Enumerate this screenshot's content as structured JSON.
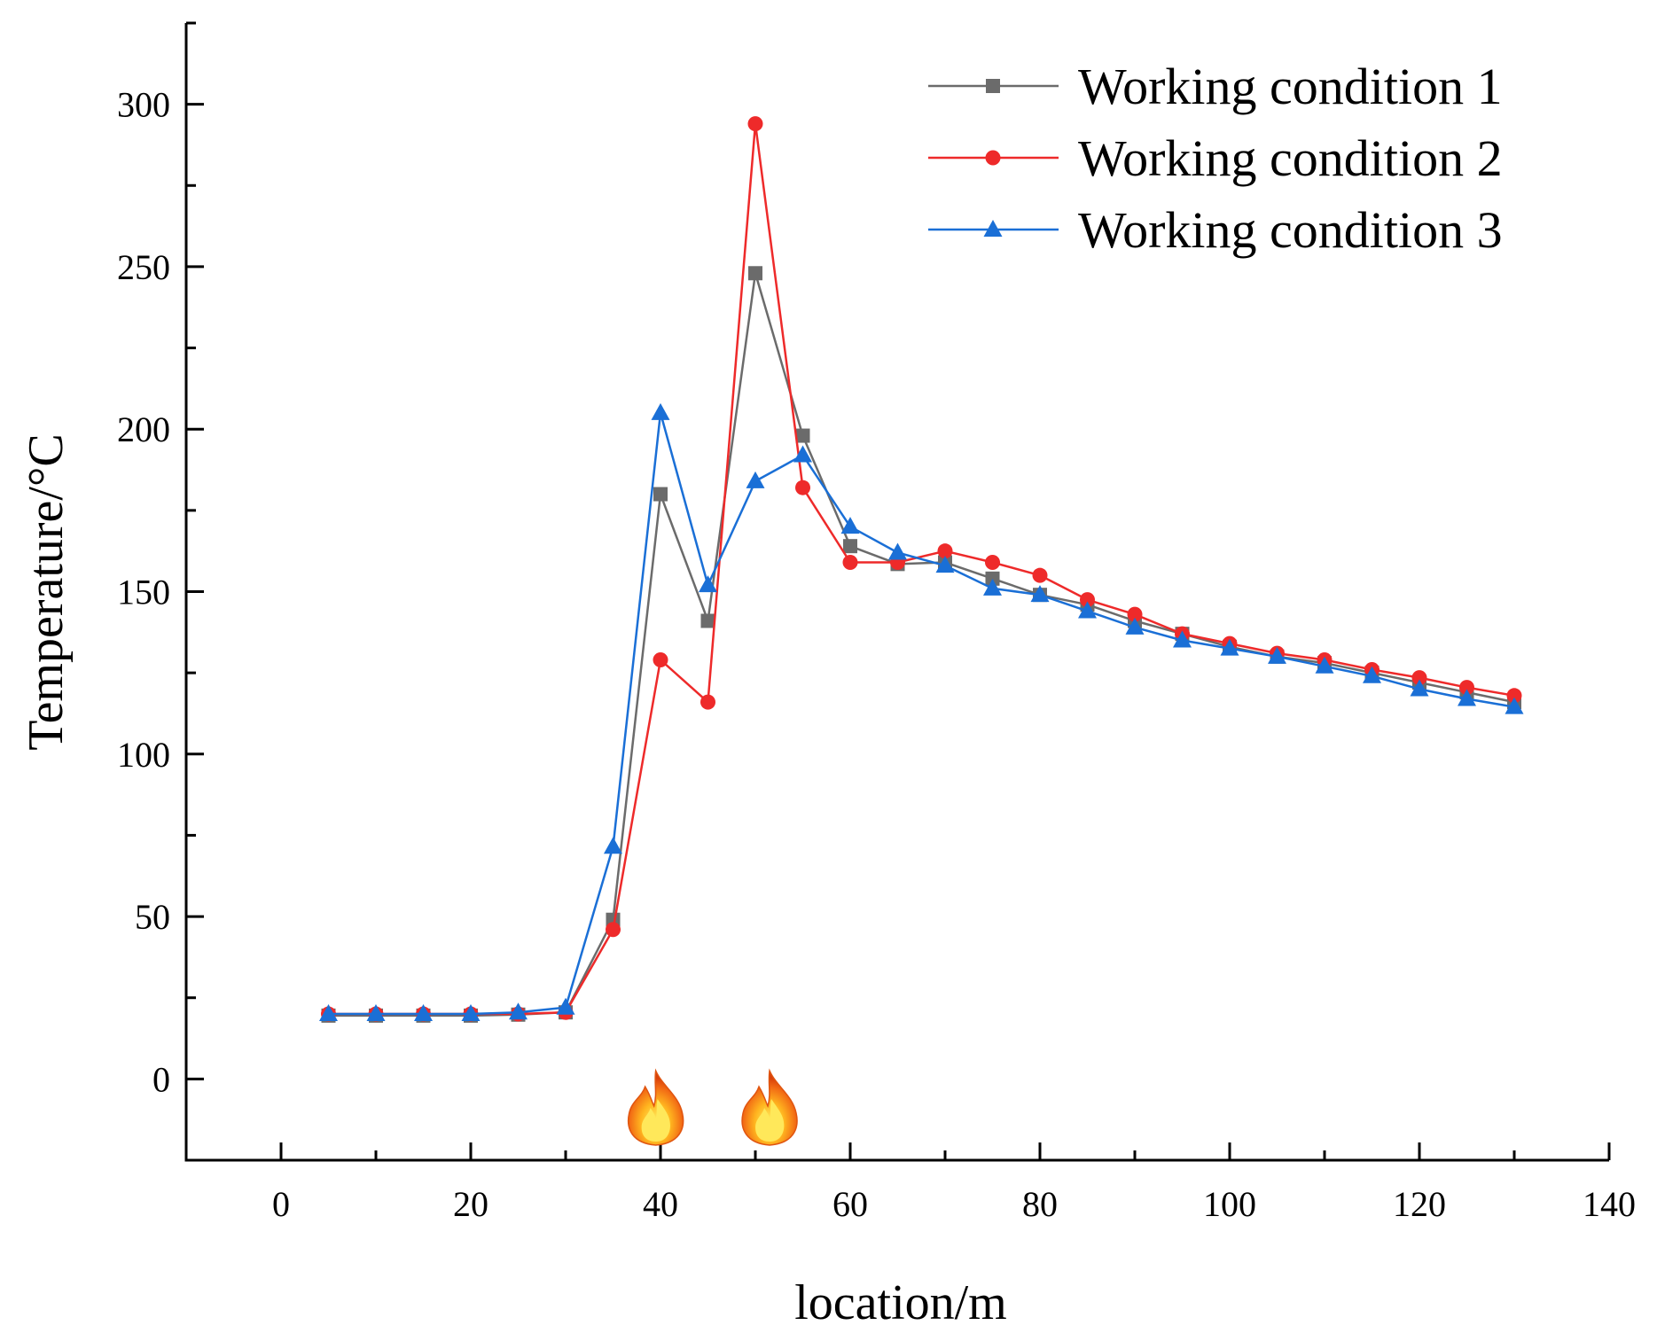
{
  "chart_data": {
    "type": "line",
    "xlabel": "location/m",
    "ylabel": "Temperature/°C",
    "xlim": [
      -10,
      140
    ],
    "ylim": [
      -25,
      325
    ],
    "x_ticks": [
      0,
      20,
      40,
      60,
      80,
      100,
      120,
      140
    ],
    "y_ticks": [
      0,
      50,
      100,
      150,
      200,
      250,
      300
    ],
    "grid": false,
    "legend_position": "top-right",
    "x": [
      5,
      10,
      15,
      20,
      25,
      30,
      35,
      40,
      45,
      50,
      55,
      60,
      65,
      70,
      75,
      80,
      85,
      90,
      95,
      100,
      105,
      110,
      115,
      120,
      125,
      130
    ],
    "series": [
      {
        "name": "Working condition 1",
        "color": "#6b6b6b",
        "marker": "square",
        "values": [
          19.5,
          19.5,
          19.5,
          19.5,
          19.8,
          20.5,
          49,
          180,
          141,
          248,
          198,
          164,
          158.5,
          159,
          154,
          149,
          146,
          141,
          137,
          133,
          130,
          128,
          125,
          122,
          119,
          116
        ]
      },
      {
        "name": "Working condition 2",
        "color": "#ee2a2a",
        "marker": "circle",
        "values": [
          20,
          20,
          20,
          20,
          20,
          20.5,
          46,
          129,
          116,
          294,
          182,
          159,
          159,
          162.5,
          159,
          155,
          147.5,
          143,
          137,
          134,
          131,
          129,
          126,
          123.5,
          120.5,
          118
        ]
      },
      {
        "name": "Working condition 3",
        "color": "#1a6fd6",
        "marker": "triangle",
        "values": [
          20,
          20,
          20,
          20,
          20.5,
          22,
          71.5,
          205,
          152,
          184,
          192,
          170,
          162,
          158,
          151,
          149,
          144,
          139,
          135,
          132.5,
          130,
          127,
          124,
          120,
          117,
          114.5
        ]
      }
    ],
    "annotations": [
      {
        "type": "flame-icon",
        "x": 39.5
      },
      {
        "type": "flame-icon",
        "x": 51.5
      }
    ]
  }
}
